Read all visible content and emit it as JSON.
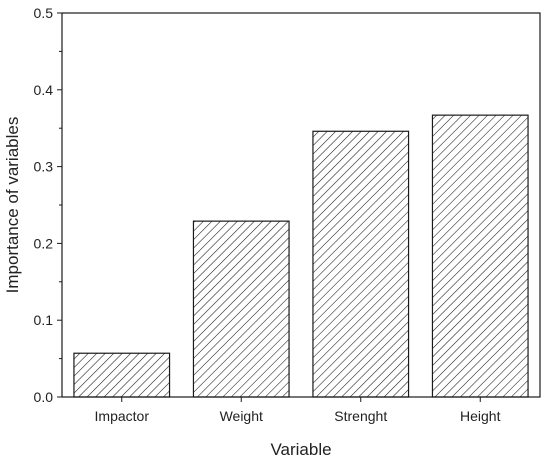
{
  "chart_data": {
    "type": "bar",
    "title": "",
    "xlabel": "Variable",
    "ylabel": "Importance of variables",
    "categories": [
      "Impactor",
      "Weight",
      "Strenght",
      "Height"
    ],
    "values": [
      0.057,
      0.229,
      0.346,
      0.367
    ],
    "ylim": [
      0,
      0.5
    ],
    "yticks": [
      "0.0",
      "0.1",
      "0.2",
      "0.3",
      "0.4",
      "0.5"
    ],
    "grid": false,
    "legend": "none",
    "bar_fill": "diagonal-hatch",
    "bar_color": "#1a1a1a"
  }
}
